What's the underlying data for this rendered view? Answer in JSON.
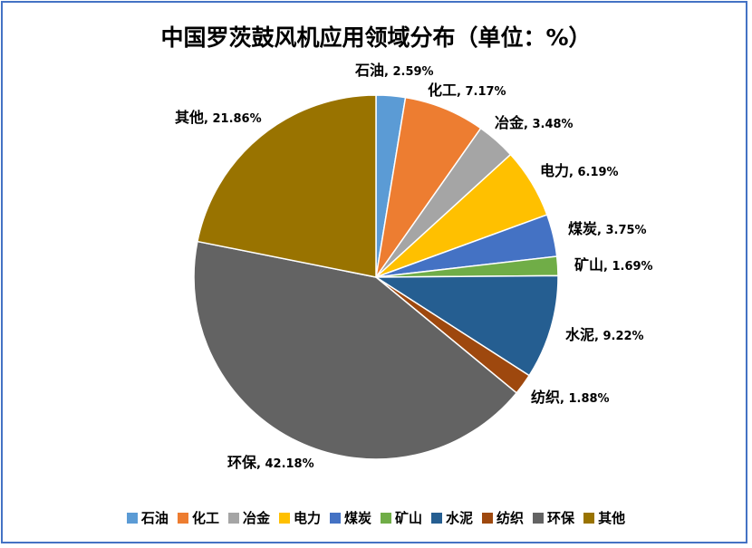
{
  "chart_data": {
    "type": "pie",
    "title": "中国罗茨鼓风机应用领域分布（单位：%）",
    "categories": [
      "石油",
      "化工",
      "冶金",
      "电力",
      "煤炭",
      "矿山",
      "水泥",
      "纺织",
      "环保",
      "其他"
    ],
    "values": [
      2.59,
      7.17,
      3.48,
      6.19,
      3.75,
      1.69,
      9.22,
      1.88,
      42.18,
      21.86
    ],
    "value_labels": [
      "2.59%",
      "7.17%",
      "3.48%",
      "6.19%",
      "3.75%",
      "1.69%",
      "9.22%",
      "1.88%",
      "42.18%",
      "21.86%"
    ],
    "colors": [
      "#5b9bd5",
      "#ed7d31",
      "#a5a5a5",
      "#ffc000",
      "#4472c4",
      "#70ad47",
      "#255e91",
      "#9e480e",
      "#636363",
      "#997300"
    ],
    "start": "12 o'clock",
    "direction": "clockwise",
    "legend_position": "bottom"
  }
}
